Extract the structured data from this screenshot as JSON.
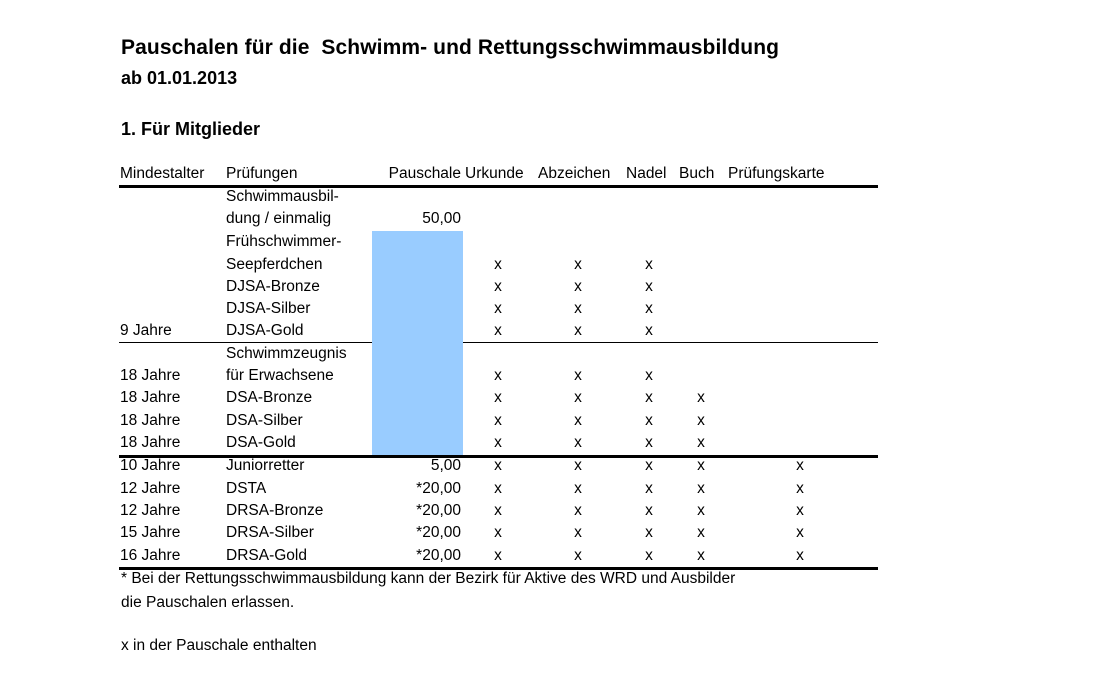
{
  "title": "Pauschalen für die  Schwimm- und Rettungsschwimmausbildung",
  "subtitle": "ab 01.01.2013",
  "section_title": "1. Für Mitglieder",
  "table": {
    "headers": {
      "age": "Mindestalter",
      "exam": "Prüfungen",
      "fee": "Pauschale",
      "certificate": "Urkunde",
      "badge": "Abzeichen",
      "pin": "Nadel",
      "book": "Buch",
      "card": "Prüfungskarte"
    },
    "rows": [
      {
        "age": "",
        "exam": "Schwimmausbil-",
        "fee": "",
        "certificate": "",
        "badge": "",
        "pin": "",
        "book": "",
        "card": ""
      },
      {
        "age": "",
        "exam": "dung / einmalig",
        "fee": "50,00",
        "certificate": "",
        "badge": "",
        "pin": "",
        "book": "",
        "card": ""
      },
      {
        "age": "",
        "exam": "Frühschwimmer-",
        "fee": "",
        "certificate": "",
        "badge": "",
        "pin": "",
        "book": "",
        "card": ""
      },
      {
        "age": "",
        "exam": "Seepferdchen",
        "fee": "",
        "certificate": "x",
        "badge": "x",
        "pin": "x",
        "book": "",
        "card": ""
      },
      {
        "age": "",
        "exam": "DJSA-Bronze",
        "fee": "",
        "certificate": "x",
        "badge": "x",
        "pin": "x",
        "book": "",
        "card": ""
      },
      {
        "age": "",
        "exam": "DJSA-Silber",
        "fee": "",
        "certificate": "x",
        "badge": "x",
        "pin": "x",
        "book": "",
        "card": ""
      },
      {
        "age": "9 Jahre",
        "exam": "DJSA-Gold",
        "fee": "",
        "certificate": "x",
        "badge": "x",
        "pin": "x",
        "book": "",
        "card": ""
      },
      {
        "age": "",
        "exam": "Schwimmzeugnis",
        "fee": "",
        "certificate": "",
        "badge": "",
        "pin": "",
        "book": "",
        "card": ""
      },
      {
        "age": "18 Jahre",
        "exam": "für Erwachsene",
        "fee": "",
        "certificate": "x",
        "badge": "x",
        "pin": "x",
        "book": "",
        "card": ""
      },
      {
        "age": "18 Jahre",
        "exam": "DSA-Bronze",
        "fee": "",
        "certificate": "x",
        "badge": "x",
        "pin": "x",
        "book": "x",
        "card": ""
      },
      {
        "age": "18 Jahre",
        "exam": "DSA-Silber",
        "fee": "",
        "certificate": "x",
        "badge": "x",
        "pin": "x",
        "book": "x",
        "card": ""
      },
      {
        "age": "18 Jahre",
        "exam": "DSA-Gold",
        "fee": "",
        "certificate": "x",
        "badge": "x",
        "pin": "x",
        "book": "x",
        "card": ""
      },
      {
        "age": "10 Jahre",
        "exam": "Juniorretter",
        "fee": "5,00",
        "certificate": "x",
        "badge": "x",
        "pin": "x",
        "book": "x",
        "card": "x"
      },
      {
        "age": "12 Jahre",
        "exam": "DSTA",
        "fee": "*20,00",
        "certificate": "x",
        "badge": "x",
        "pin": "x",
        "book": "x",
        "card": "x"
      },
      {
        "age": "12 Jahre",
        "exam": "DRSA-Bronze",
        "fee": "*20,00",
        "certificate": "x",
        "badge": "x",
        "pin": "x",
        "book": "x",
        "card": "x"
      },
      {
        "age": "15 Jahre",
        "exam": "DRSA-Silber",
        "fee": "*20,00",
        "certificate": "x",
        "badge": "x",
        "pin": "x",
        "book": "x",
        "card": "x"
      },
      {
        "age": "16 Jahre",
        "exam": "DRSA-Gold",
        "fee": "*20,00",
        "certificate": "x",
        "badge": "x",
        "pin": "x",
        "book": "x",
        "card": "x"
      }
    ]
  },
  "footnote_line1": "* Bei der Rettungsschwimmausbildung kann der Bezirk für Aktive des WRD und Ausbilder",
  "footnote_line2": "die Pauschalen erlassen.",
  "legend": "x in der Pauschale enthalten",
  "colors": {
    "fee_highlight": "#99ccff"
  }
}
